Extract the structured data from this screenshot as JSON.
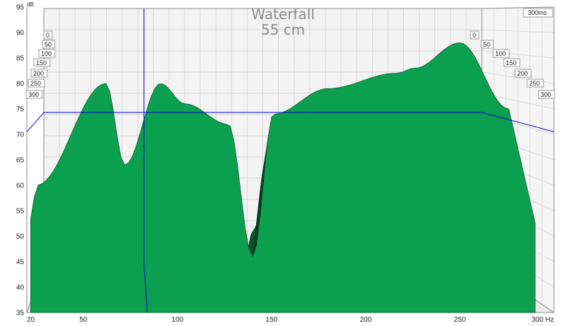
{
  "chart_data": {
    "type": "area",
    "title": "Waterfall",
    "subtitle": "55 cm",
    "xlabel": "Hz",
    "ylabel": "dB",
    "x_ticks": [
      20,
      50,
      100,
      150,
      200,
      250,
      300
    ],
    "x_tick_labels": [
      "20",
      "50",
      "100",
      "150",
      "200",
      "250",
      "300 Hz"
    ],
    "y_ticks": [
      35,
      40,
      45,
      50,
      55,
      60,
      65,
      70,
      75,
      80,
      85,
      90,
      95
    ],
    "xlim": [
      20,
      300
    ],
    "ylim": [
      35,
      95
    ],
    "time_axis_label": "300ms",
    "time_slices_ms": [
      0,
      50,
      100,
      150,
      200,
      250,
      300
    ],
    "grid": true,
    "fill_color": "#0aa04f",
    "edge_color": "#0b3a1e",
    "cursor_color": "#0000cc",
    "cursor_frequency_hz": 84,
    "cursor_level_db": 70.5,
    "front_slice_peaks": [
      {
        "freq_hz": 25,
        "db": 60
      },
      {
        "freq_hz": 62,
        "db": 80
      },
      {
        "freq_hz": 72,
        "db": 64
      },
      {
        "freq_hz": 91,
        "db": 80
      },
      {
        "freq_hz": 104,
        "db": 76
      },
      {
        "freq_hz": 127,
        "db": 72
      },
      {
        "freq_hz": 140,
        "db": 46
      },
      {
        "freq_hz": 151,
        "db": 74
      },
      {
        "freq_hz": 180,
        "db": 79
      },
      {
        "freq_hz": 216,
        "db": 82
      },
      {
        "freq_hz": 226,
        "db": 83
      },
      {
        "freq_hz": 250,
        "db": 88
      },
      {
        "freq_hz": 276,
        "db": 75
      }
    ]
  }
}
